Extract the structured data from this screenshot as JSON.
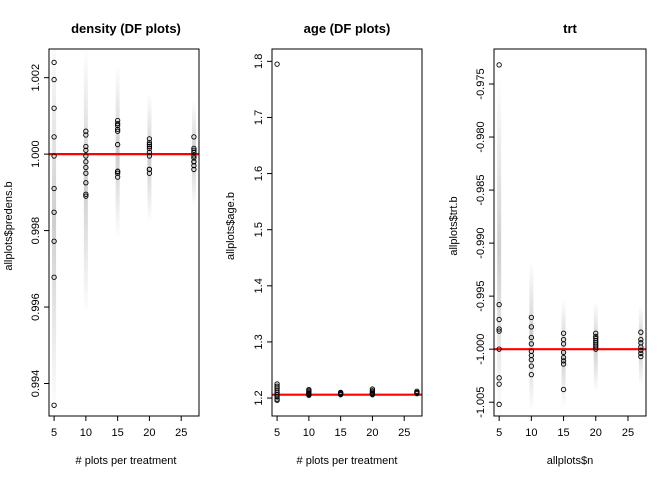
{
  "chart_data": [
    {
      "type": "scatter",
      "title": "density (DF plots)",
      "xlabel": "# plots per treatment",
      "ylabel": "allplots$predens.b",
      "xlim": [
        4.2,
        27.8
      ],
      "ylim": [
        0.99315,
        1.00275
      ],
      "xticks": [
        5,
        10,
        15,
        20,
        25
      ],
      "xtick_labels": [
        "5",
        "10",
        "15",
        "20",
        "25"
      ],
      "yticks": [
        0.994,
        0.996,
        0.998,
        1.0,
        1.002
      ],
      "ytick_labels": [
        "0.994",
        "0.996",
        "0.998",
        "1.000",
        "1.002"
      ],
      "reference_line": {
        "y": 1.0,
        "color": "#ff0000"
      },
      "band_color": "#bdbdbd",
      "bands": [
        {
          "x": 5,
          "ymin": 0.9932,
          "ymax": 1.0032
        },
        {
          "x": 10,
          "ymin": 0.9958,
          "ymax": 1.0028
        },
        {
          "x": 15,
          "ymin": 0.9978,
          "ymax": 1.0023
        },
        {
          "x": 20,
          "ymin": 0.9982,
          "ymax": 1.0016
        },
        {
          "x": 27,
          "ymin": 0.9986,
          "ymax": 1.0014
        }
      ],
      "points": [
        {
          "x": 5,
          "y": [
            1.0024,
            1.00195,
            1.0012,
            1.00045,
            0.99995,
            0.9991,
            0.99848,
            0.99772,
            0.99678,
            0.99343
          ]
        },
        {
          "x": 10,
          "y": [
            1.0006,
            1.0005,
            1.0002,
            1.0001,
            0.99995,
            0.9998,
            0.99965,
            0.9995,
            0.99925,
            0.9989,
            0.99895
          ]
        },
        {
          "x": 15,
          "y": [
            1.00088,
            1.0008,
            1.00075,
            1.00065,
            1.0006,
            1.00025,
            0.99955,
            0.9995,
            0.9994,
            0.99955
          ]
        },
        {
          "x": 20,
          "y": [
            1.0004,
            1.0003,
            1.00025,
            1.0002,
            1.00015,
            1.00005,
            0.99995,
            0.9996,
            0.9995,
            0.9996
          ]
        },
        {
          "x": 27,
          "y": [
            1.00045,
            1.00015,
            1.0001,
            1.00005,
            0.99995,
            0.9999,
            0.9998,
            0.9997,
            0.9996,
            0.9998
          ]
        }
      ]
    },
    {
      "type": "scatter",
      "title": "age (DF plots)",
      "xlabel": "# plots per treatment",
      "ylabel": "allplots$age.b",
      "xlim": [
        4.2,
        27.8
      ],
      "ylim": [
        1.168,
        1.822
      ],
      "xticks": [
        5,
        10,
        15,
        20,
        25
      ],
      "xtick_labels": [
        "5",
        "10",
        "15",
        "20",
        "25"
      ],
      "yticks": [
        1.2,
        1.3,
        1.4,
        1.5,
        1.6,
        1.7,
        1.8
      ],
      "ytick_labels": [
        "1.2",
        "1.3",
        "1.4",
        "1.5",
        "1.6",
        "1.7",
        "1.8"
      ],
      "reference_line": {
        "y": 1.206,
        "color": "#ff0000"
      },
      "band_color": "#bdbdbd",
      "bands": [
        {
          "x": 5,
          "ymin": 1.19,
          "ymax": 1.235
        },
        {
          "x": 10,
          "ymin": 1.196,
          "ymax": 1.222
        },
        {
          "x": 15,
          "ymin": 1.199,
          "ymax": 1.216
        },
        {
          "x": 20,
          "ymin": 1.199,
          "ymax": 1.219
        },
        {
          "x": 27,
          "ymin": 1.2,
          "ymax": 1.215
        }
      ],
      "points": [
        {
          "x": 5,
          "y": [
            1.795,
            1.225,
            1.221,
            1.218,
            1.214,
            1.21,
            1.206,
            1.202,
            1.198,
            1.196
          ]
        },
        {
          "x": 10,
          "y": [
            1.215,
            1.213,
            1.211,
            1.209,
            1.208,
            1.207,
            1.206,
            1.205
          ]
        },
        {
          "x": 15,
          "y": [
            1.21,
            1.209,
            1.208,
            1.207,
            1.206
          ]
        },
        {
          "x": 20,
          "y": [
            1.216,
            1.213,
            1.211,
            1.209,
            1.208,
            1.207,
            1.206
          ]
        },
        {
          "x": 27,
          "y": [
            1.212,
            1.21,
            1.209,
            1.208
          ]
        }
      ]
    },
    {
      "type": "scatter",
      "title": "trt",
      "xlabel": "allplots$n",
      "ylabel": "allplots$trt.b",
      "xlim": [
        4.2,
        27.8
      ],
      "ylim": [
        -1.0063,
        -0.9717
      ],
      "xticks": [
        5,
        10,
        15,
        20,
        25
      ],
      "xtick_labels": [
        "5",
        "10",
        "15",
        "20",
        "25"
      ],
      "yticks": [
        -1.005,
        -1.0,
        -0.995,
        -0.99,
        -0.985,
        -0.98,
        -0.975
      ],
      "ytick_labels": [
        "-1.005",
        "-1.000",
        "-0.995",
        "-0.990",
        "-0.985",
        "-0.980",
        "-0.975"
      ],
      "reference_line": {
        "y": -1.0,
        "color": "#ff0000"
      },
      "band_color": "#bdbdbd",
      "bands": [
        {
          "x": 5,
          "ymin": -1.007,
          "ymax": -0.9745
        },
        {
          "x": 10,
          "ymin": -1.006,
          "ymax": -0.9917
        },
        {
          "x": 15,
          "ymin": -1.0055,
          "ymax": -0.9953
        },
        {
          "x": 20,
          "ymin": -1.004,
          "ymax": -0.9955
        },
        {
          "x": 27,
          "ymin": -1.0035,
          "ymax": -0.9958
        }
      ],
      "points": [
        {
          "x": 5,
          "y": [
            -0.9732,
            -0.9958,
            -0.9972,
            -0.9981,
            -0.9983,
            -1.0,
            -1.0027,
            -1.0033,
            -1.0052
          ]
        },
        {
          "x": 10,
          "y": [
            -0.997,
            -0.9979,
            -0.9989,
            -0.9995,
            -1.0002,
            -1.0006,
            -1.001,
            -1.0016,
            -1.0024
          ]
        },
        {
          "x": 15,
          "y": [
            -0.9985,
            -0.9991,
            -0.9995,
            -1.0003,
            -1.0008,
            -1.0011,
            -1.0014,
            -1.0038
          ]
        },
        {
          "x": 20,
          "y": [
            -0.9985,
            -0.9988,
            -0.999,
            -0.9992,
            -0.9994,
            -0.9996,
            -0.9998,
            -1.0
          ]
        },
        {
          "x": 27,
          "y": [
            -0.9984,
            -0.9991,
            -0.9994,
            -0.9998,
            -1.0001,
            -1.0004,
            -1.0007
          ]
        }
      ]
    }
  ]
}
